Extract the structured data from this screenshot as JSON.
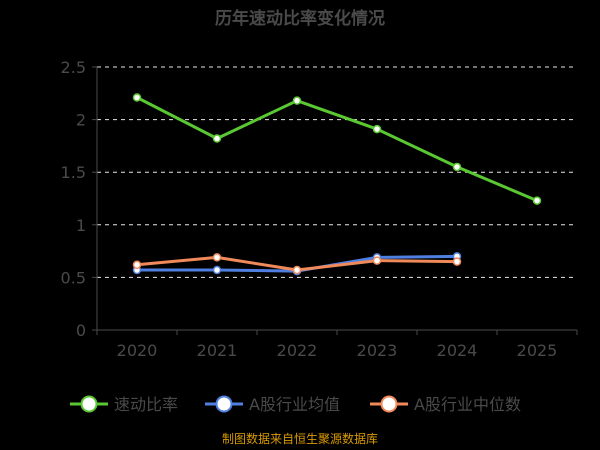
{
  "chart_data": {
    "type": "line",
    "title": "历年速动比率变化情况",
    "xlabel": "",
    "ylabel": "",
    "categories": [
      "2020",
      "2021",
      "2022",
      "2023",
      "2024",
      "2025"
    ],
    "ylim": [
      0,
      2.5
    ],
    "yticks": [
      "0",
      "0.5",
      "1",
      "1.5",
      "2",
      "2.5"
    ],
    "grid": "horizontal dashed",
    "legend_position": "bottom",
    "series": [
      {
        "name": "速动比率",
        "color": "#5ac832",
        "values": [
          2.21,
          1.82,
          2.18,
          1.91,
          1.55,
          1.23
        ]
      },
      {
        "name": "A股行业均值",
        "color": "#4f7fe0",
        "values": [
          0.57,
          0.57,
          0.56,
          0.69,
          0.7,
          null
        ]
      },
      {
        "name": "A股行业中位数",
        "color": "#f08a5a",
        "values": [
          0.62,
          0.69,
          0.57,
          0.66,
          0.65,
          null
        ]
      }
    ]
  },
  "footer": {
    "source": "制图数据来自恒生聚源数据库"
  },
  "colors": {
    "background": "#000000",
    "title": "#4a4a4a",
    "axis_text": "#4a4a4a",
    "grid": "#e8e8e8",
    "footer": "#d99a00"
  }
}
